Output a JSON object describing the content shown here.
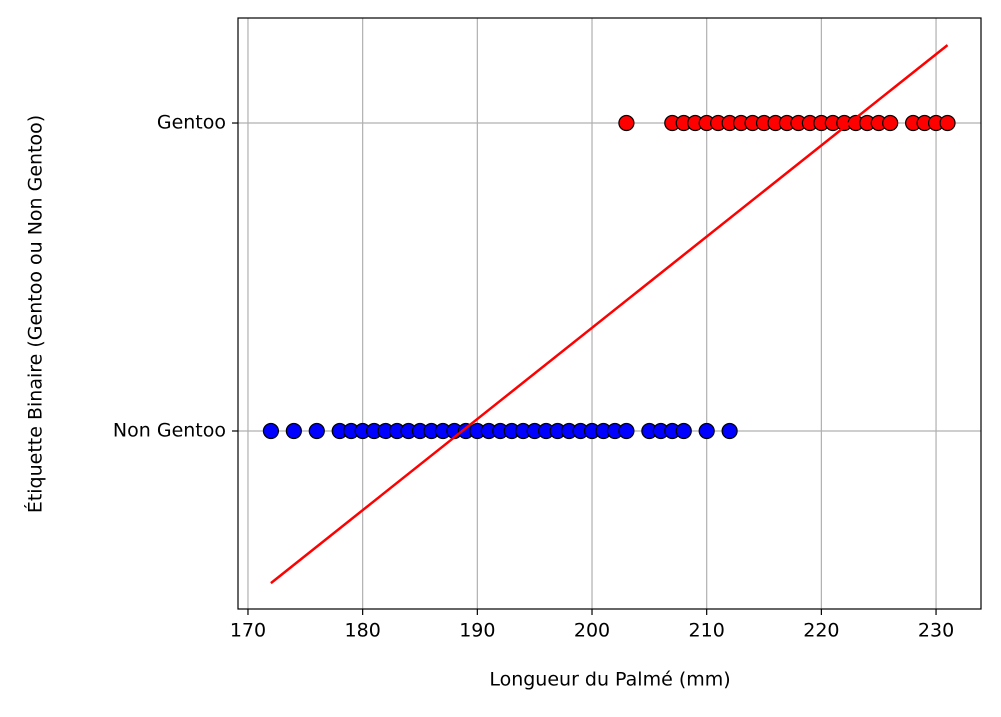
{
  "chart_data": {
    "type": "scatter",
    "xlabel": "Longueur du Palmé (mm)",
    "ylabel": "Étiquette Binaire (Gentoo ou Non Gentoo)",
    "xlim": [
      169.13,
      233.92
    ],
    "ylim": [
      -0.578,
      1.341
    ],
    "xticks": [
      170,
      180,
      190,
      200,
      210,
      220,
      230
    ],
    "yticks": [
      {
        "value": 0,
        "label": "Non Gentoo"
      },
      {
        "value": 1,
        "label": "Gentoo"
      }
    ],
    "grid": true,
    "series": [
      {
        "type": "scatter",
        "color": "#0000ff",
        "edgecolor": "#000000",
        "x": [
          172,
          174,
          176,
          178,
          179,
          180,
          181,
          182,
          183,
          184,
          185,
          186,
          187,
          188,
          189,
          190,
          191,
          192,
          193,
          194,
          195,
          196,
          197,
          198,
          199,
          200,
          201,
          202,
          203,
          205,
          206,
          207,
          208,
          210,
          212
        ],
        "values": [
          0,
          0,
          0,
          0,
          0,
          0,
          0,
          0,
          0,
          0,
          0,
          0,
          0,
          0,
          0,
          0,
          0,
          0,
          0,
          0,
          0,
          0,
          0,
          0,
          0,
          0,
          0,
          0,
          0,
          0,
          0,
          0,
          0,
          0,
          0
        ]
      },
      {
        "type": "scatter",
        "color": "#ff0000",
        "edgecolor": "#000000",
        "x": [
          203,
          207,
          208,
          209,
          210,
          211,
          212,
          213,
          214,
          215,
          216,
          217,
          218,
          219,
          220,
          221,
          222,
          223,
          224,
          225,
          226,
          228,
          229,
          230,
          231
        ],
        "values": [
          1,
          1,
          1,
          1,
          1,
          1,
          1,
          1,
          1,
          1,
          1,
          1,
          1,
          1,
          1,
          1,
          1,
          1,
          1,
          1,
          1,
          1,
          1,
          1,
          1
        ]
      },
      {
        "type": "line",
        "color": "#ff0000",
        "x": [
          172,
          231
        ],
        "values": [
          -0.494,
          1.253
        ]
      }
    ]
  }
}
